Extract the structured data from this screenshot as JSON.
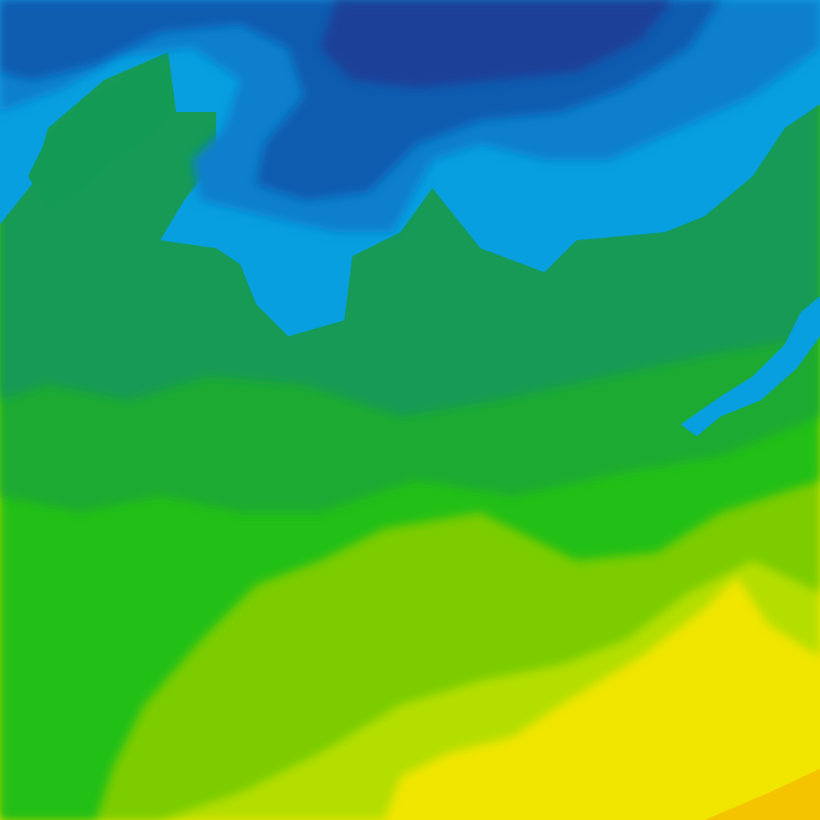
{
  "map": {
    "type": "temperature-contour-tile",
    "palette": {
      "darkest_blue": "#1f3f98",
      "dark_blue": "#0d5cb0",
      "mid_blue": "#0a7fcc",
      "light_blue": "#079fe0",
      "teal_green": "#139a55",
      "green": "#1aaa30",
      "bright_green": "#22bf12",
      "lime": "#7ccc00",
      "yellow_green": "#b4de00",
      "yellow": "#f0e600",
      "orange_yellow": "#f5c400"
    }
  }
}
